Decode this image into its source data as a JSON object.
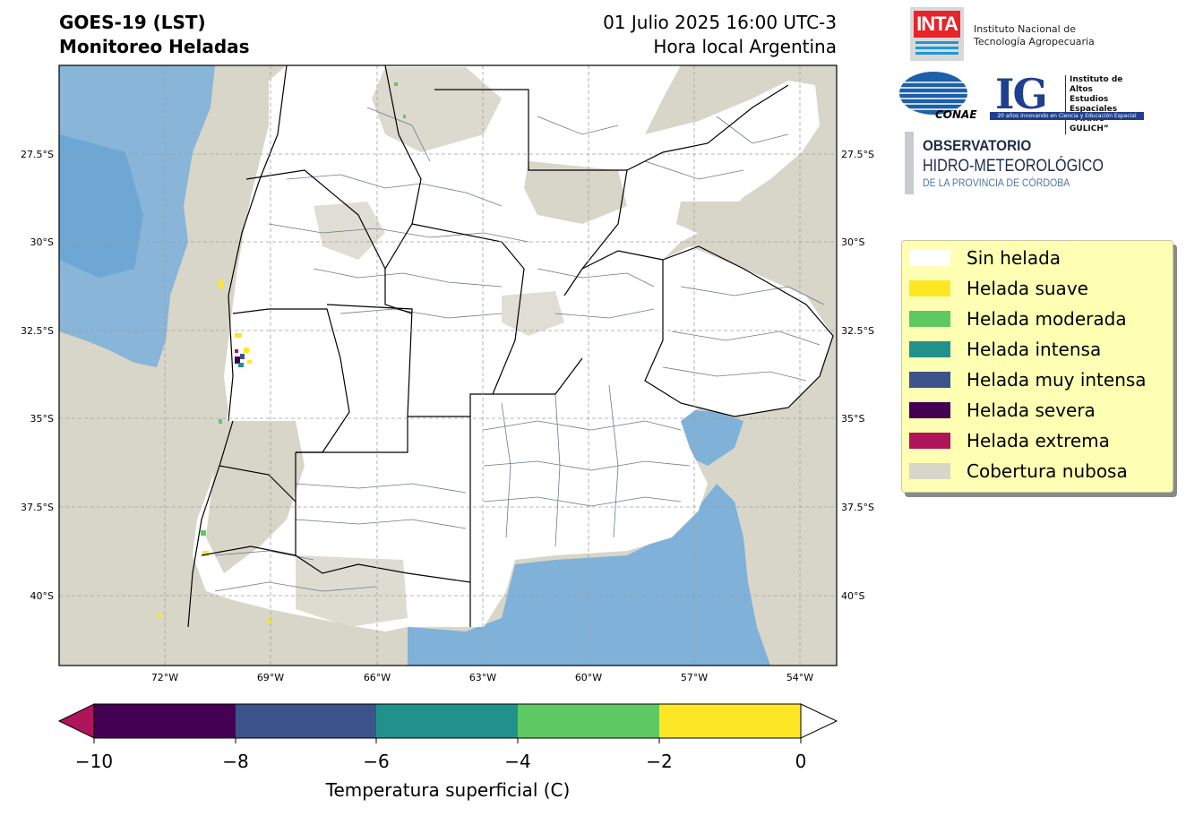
{
  "header": {
    "title_line1": "GOES-19 (LST)",
    "title_line2": "Monitoreo Heladas",
    "datetime": "01 Julio 2025 16:00 UTC-3",
    "timezone_note": "Hora local Argentina"
  },
  "map": {
    "lon_ticks": [
      "72°W",
      "69°W",
      "66°W",
      "63°W",
      "60°W",
      "57°W",
      "54°W"
    ],
    "lat_ticks": [
      "27.5°S",
      "30°S",
      "32.5°S",
      "35°S",
      "37.5°S",
      "40°S"
    ],
    "colors": {
      "cloud": "#d8d6c9",
      "ocean": "#7fb1d9",
      "land": "#ffffff",
      "boundary_province": "#000000",
      "boundary_department": "#6c7a8a"
    }
  },
  "colorbar": {
    "title": "Temperatura superficial (C)",
    "tick_labels": [
      "−10",
      "−8",
      "−6",
      "−4",
      "−2",
      "0"
    ],
    "colors": [
      "#440154",
      "#3b528b",
      "#21918c",
      "#5ec962",
      "#fde725"
    ],
    "extend_low_color": "#b0145a",
    "extend_high_color": "#ffffff"
  },
  "legend": {
    "items": [
      {
        "label": "Sin helada",
        "color": "#ffffff"
      },
      {
        "label": "Helada suave",
        "color": "#fde725"
      },
      {
        "label": "Helada moderada",
        "color": "#5ec962"
      },
      {
        "label": "Helada intensa",
        "color": "#21918c"
      },
      {
        "label": "Helada muy intensa",
        "color": "#3b528b"
      },
      {
        "label": "Helada severa",
        "color": "#440154"
      },
      {
        "label": "Helada extrema",
        "color": "#b0145a"
      },
      {
        "label": "Cobertura nubosa",
        "color": "#d8d6c9"
      }
    ]
  },
  "logos": {
    "inta_mark": "INTA",
    "inta_line1": "Instituto Nacional de",
    "inta_line2": "Tecnología Agropecuaria",
    "conae_mark": "CONAE",
    "ig_mark": "IG",
    "ig_line1": "Instituto de Altos",
    "ig_line2": "Estudios Espaciales",
    "ig_line3": "“MARIO GULICH”",
    "ig_band": "20 años innovando en Ciencia y Educación Espacial",
    "obs_line1": "OBSERVATORIO",
    "obs_line2": "HIDRO-METEOROLÓGICO",
    "obs_line3": "DE LA PROVINCIA DE CÓRDOBA"
  }
}
